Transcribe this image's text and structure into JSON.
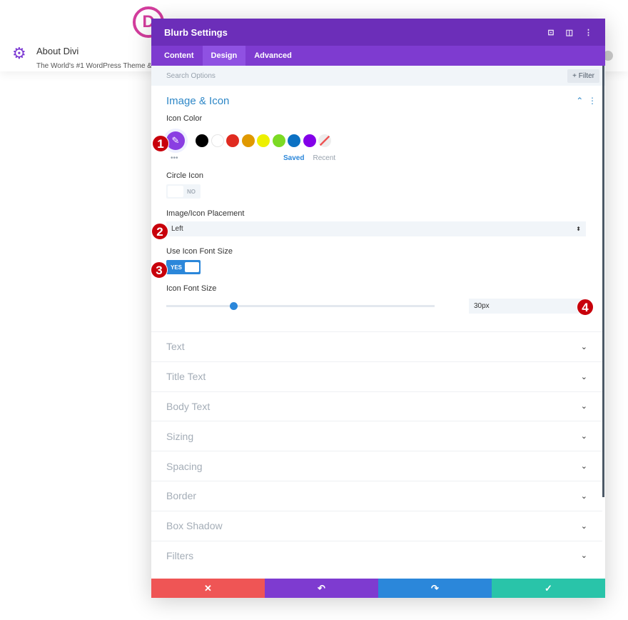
{
  "page": {
    "title": "About Divi",
    "tagline": "The World's #1 WordPress Theme &",
    "logo": "D"
  },
  "modal": {
    "title": "Blurb Settings",
    "tabs": [
      {
        "label": "Content"
      },
      {
        "label": "Design",
        "active": true
      },
      {
        "label": "Advanced"
      }
    ],
    "search_placeholder": "Search Options",
    "filter_label": "+ Filter",
    "section": {
      "title": "Image & Icon",
      "icon_color": {
        "label": "Icon Color",
        "swatches": [
          "#000000",
          "#ffffff",
          "#e02b20",
          "#e09900",
          "#edf000",
          "#7cda24",
          "#0c71c3",
          "#8300e9"
        ],
        "selected": "#8a3ee2",
        "more": "•••",
        "saved": "Saved",
        "recent": "Recent"
      },
      "circle_icon": {
        "label": "Circle Icon",
        "value": "NO"
      },
      "placement": {
        "label": "Image/Icon Placement",
        "value": "Left"
      },
      "use_font_size": {
        "label": "Use Icon Font Size",
        "value": "YES"
      },
      "font_size": {
        "label": "Icon Font Size",
        "value": "30px",
        "slider_percent": 25
      }
    },
    "closed_sections": [
      "Text",
      "Title Text",
      "Body Text",
      "Sizing",
      "Spacing",
      "Border",
      "Box Shadow",
      "Filters"
    ],
    "footer": {
      "cancel": "✕",
      "undo": "↶",
      "redo": "↷",
      "save": "✓"
    },
    "footer_colors": [
      "#ef5555",
      "#7e3bd0",
      "#2b87da",
      "#29c4a9"
    ]
  },
  "annotations": [
    "1",
    "2",
    "3",
    "4"
  ]
}
